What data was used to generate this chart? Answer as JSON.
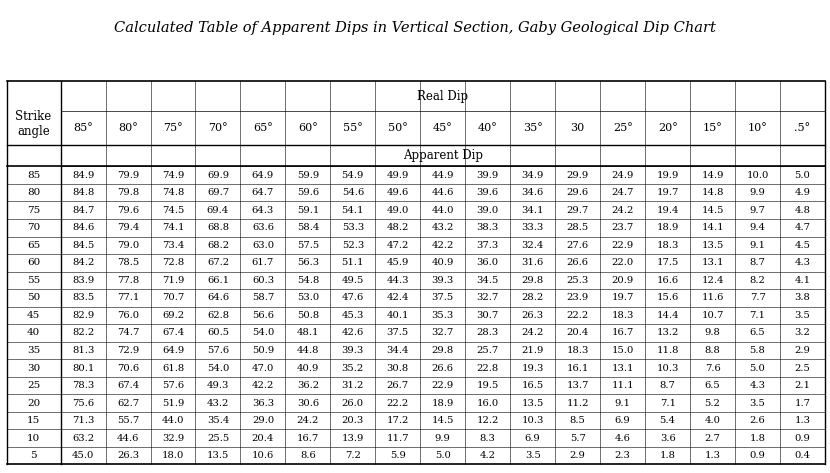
{
  "title": "Calculated Table of Apparent Dips in Vertical Section, Gaby Geological Dip Chart",
  "col_header_real": "Real Dip",
  "col_header_apparent": "Apparent Dip",
  "strike_label": "Strike\nangle",
  "col_labels": [
    "85°",
    "80°",
    "75°",
    "70°",
    "65°",
    "60°",
    "55°",
    "50°",
    "45°",
    "40°",
    "35°",
    "30",
    "25°",
    "20°",
    "15°",
    "10°",
    ".5°"
  ],
  "row_labels": [
    "85",
    "80",
    "75",
    "70",
    "65",
    "60",
    "55",
    "50",
    "45",
    "40",
    "35",
    "30",
    "25",
    "20",
    "15",
    "10",
    "5"
  ],
  "data": [
    [
      "84.9",
      "79.9",
      "74.9",
      "69.9",
      "64.9",
      "59.9",
      "54.9",
      "49.9",
      "44.9",
      "39.9",
      "34.9",
      "29.9",
      "24.9",
      "19.9",
      "14.9",
      "10.0",
      "5.0"
    ],
    [
      "84.8",
      "79.8",
      "74.8",
      "69.7",
      "64.7",
      "59.6",
      "54.6",
      "49.6",
      "44.6",
      "39.6",
      "34.6",
      "29.6",
      "24.7",
      "19.7",
      "14.8",
      "9.9",
      "4.9"
    ],
    [
      "84.7",
      "79.6",
      "74.5",
      "69.4",
      "64.3",
      "59.1",
      "54.1",
      "49.0",
      "44.0",
      "39.0",
      "34.1",
      "29.7",
      "24.2",
      "19.4",
      "14.5",
      "9.7",
      "4.8"
    ],
    [
      "84.6",
      "79.4",
      "74.1",
      "68.8",
      "63.6",
      "58.4",
      "53.3",
      "48.2",
      "43.2",
      "38.3",
      "33.3",
      "28.5",
      "23.7",
      "18.9",
      "14.1",
      "9.4",
      "4.7"
    ],
    [
      "84.5",
      "79.0",
      "73.4",
      "68.2",
      "63.0",
      "57.5",
      "52.3",
      "47.2",
      "42.2",
      "37.3",
      "32.4",
      "27.6",
      "22.9",
      "18.3",
      "13.5",
      "9.1",
      "4.5"
    ],
    [
      "84.2",
      "78.5",
      "72.8",
      "67.2",
      "61.7",
      "56.3",
      "51.1",
      "45.9",
      "40.9",
      "36.0",
      "31.6",
      "26.6",
      "22.0",
      "17.5",
      "13.1",
      "8.7",
      "4.3"
    ],
    [
      "83.9",
      "77.8",
      "71.9",
      "66.1",
      "60.3",
      "54.8",
      "49.5",
      "44.3",
      "39.3",
      "34.5",
      "29.8",
      "25.3",
      "20.9",
      "16.6",
      "12.4",
      "8.2",
      "4.1"
    ],
    [
      "83.5",
      "77.1",
      "70.7",
      "64.6",
      "58.7",
      "53.0",
      "47.6",
      "42.4",
      "37.5",
      "32.7",
      "28.2",
      "23.9",
      "19.7",
      "15.6",
      "11.6",
      "7.7",
      "3.8"
    ],
    [
      "82.9",
      "76.0",
      "69.2",
      "62.8",
      "56.6",
      "50.8",
      "45.3",
      "40.1",
      "35.3",
      "30.7",
      "26.3",
      "22.2",
      "18.3",
      "14.4",
      "10.7",
      "7.1",
      "3.5"
    ],
    [
      "82.2",
      "74.7",
      "67.4",
      "60.5",
      "54.0",
      "48.1",
      "42.6",
      "37.5",
      "32.7",
      "28.3",
      "24.2",
      "20.4",
      "16.7",
      "13.2",
      "9.8",
      "6.5",
      "3.2"
    ],
    [
      "81.3",
      "72.9",
      "64.9",
      "57.6",
      "50.9",
      "44.8",
      "39.3",
      "34.4",
      "29.8",
      "25.7",
      "21.9",
      "18.3",
      "15.0",
      "11.8",
      "8.8",
      "5.8",
      "2.9"
    ],
    [
      "80.1",
      "70.6",
      "61.8",
      "54.0",
      "47.0",
      "40.9",
      "35.2",
      "30.8",
      "26.6",
      "22.8",
      "19.3",
      "16.1",
      "13.1",
      "10.3",
      "7.6",
      "5.0",
      "2.5"
    ],
    [
      "78.3",
      "67.4",
      "57.6",
      "49.3",
      "42.2",
      "36.2",
      "31.2",
      "26.7",
      "22.9",
      "19.5",
      "16.5",
      "13.7",
      "11.1",
      "8.7",
      "6.5",
      "4.3",
      "2.1"
    ],
    [
      "75.6",
      "62.7",
      "51.9",
      "43.2",
      "36.3",
      "30.6",
      "26.0",
      "22.2",
      "18.9",
      "16.0",
      "13.5",
      "11.2",
      "9.1",
      "7.1",
      "5.2",
      "3.5",
      "1.7"
    ],
    [
      "71.3",
      "55.7",
      "44.0",
      "35.4",
      "29.0",
      "24.2",
      "20.3",
      "17.2",
      "14.5",
      "12.2",
      "10.3",
      "8.5",
      "6.9",
      "5.4",
      "4.0",
      "2.6",
      "1.3"
    ],
    [
      "63.2",
      "44.6",
      "32.9",
      "25.5",
      "20.4",
      "16.7",
      "13.9",
      "11.7",
      "9.9",
      "8.3",
      "6.9",
      "5.7",
      "4.6",
      "3.6",
      "2.7",
      "1.8",
      "0.9"
    ],
    [
      "45.0",
      "26.3",
      "18.0",
      "13.5",
      "10.6",
      "8.6",
      "7.2",
      "5.9",
      "5.0",
      "4.2",
      "3.5",
      "2.9",
      "2.3",
      "1.8",
      "1.3",
      "0.9",
      "0.4"
    ]
  ],
  "bg_color": "#ffffff",
  "text_color": "#000000",
  "title_fontsize": 10.5,
  "header_fontsize": 8.5,
  "cell_fontsize": 7.2,
  "row_label_fontsize": 7.5
}
